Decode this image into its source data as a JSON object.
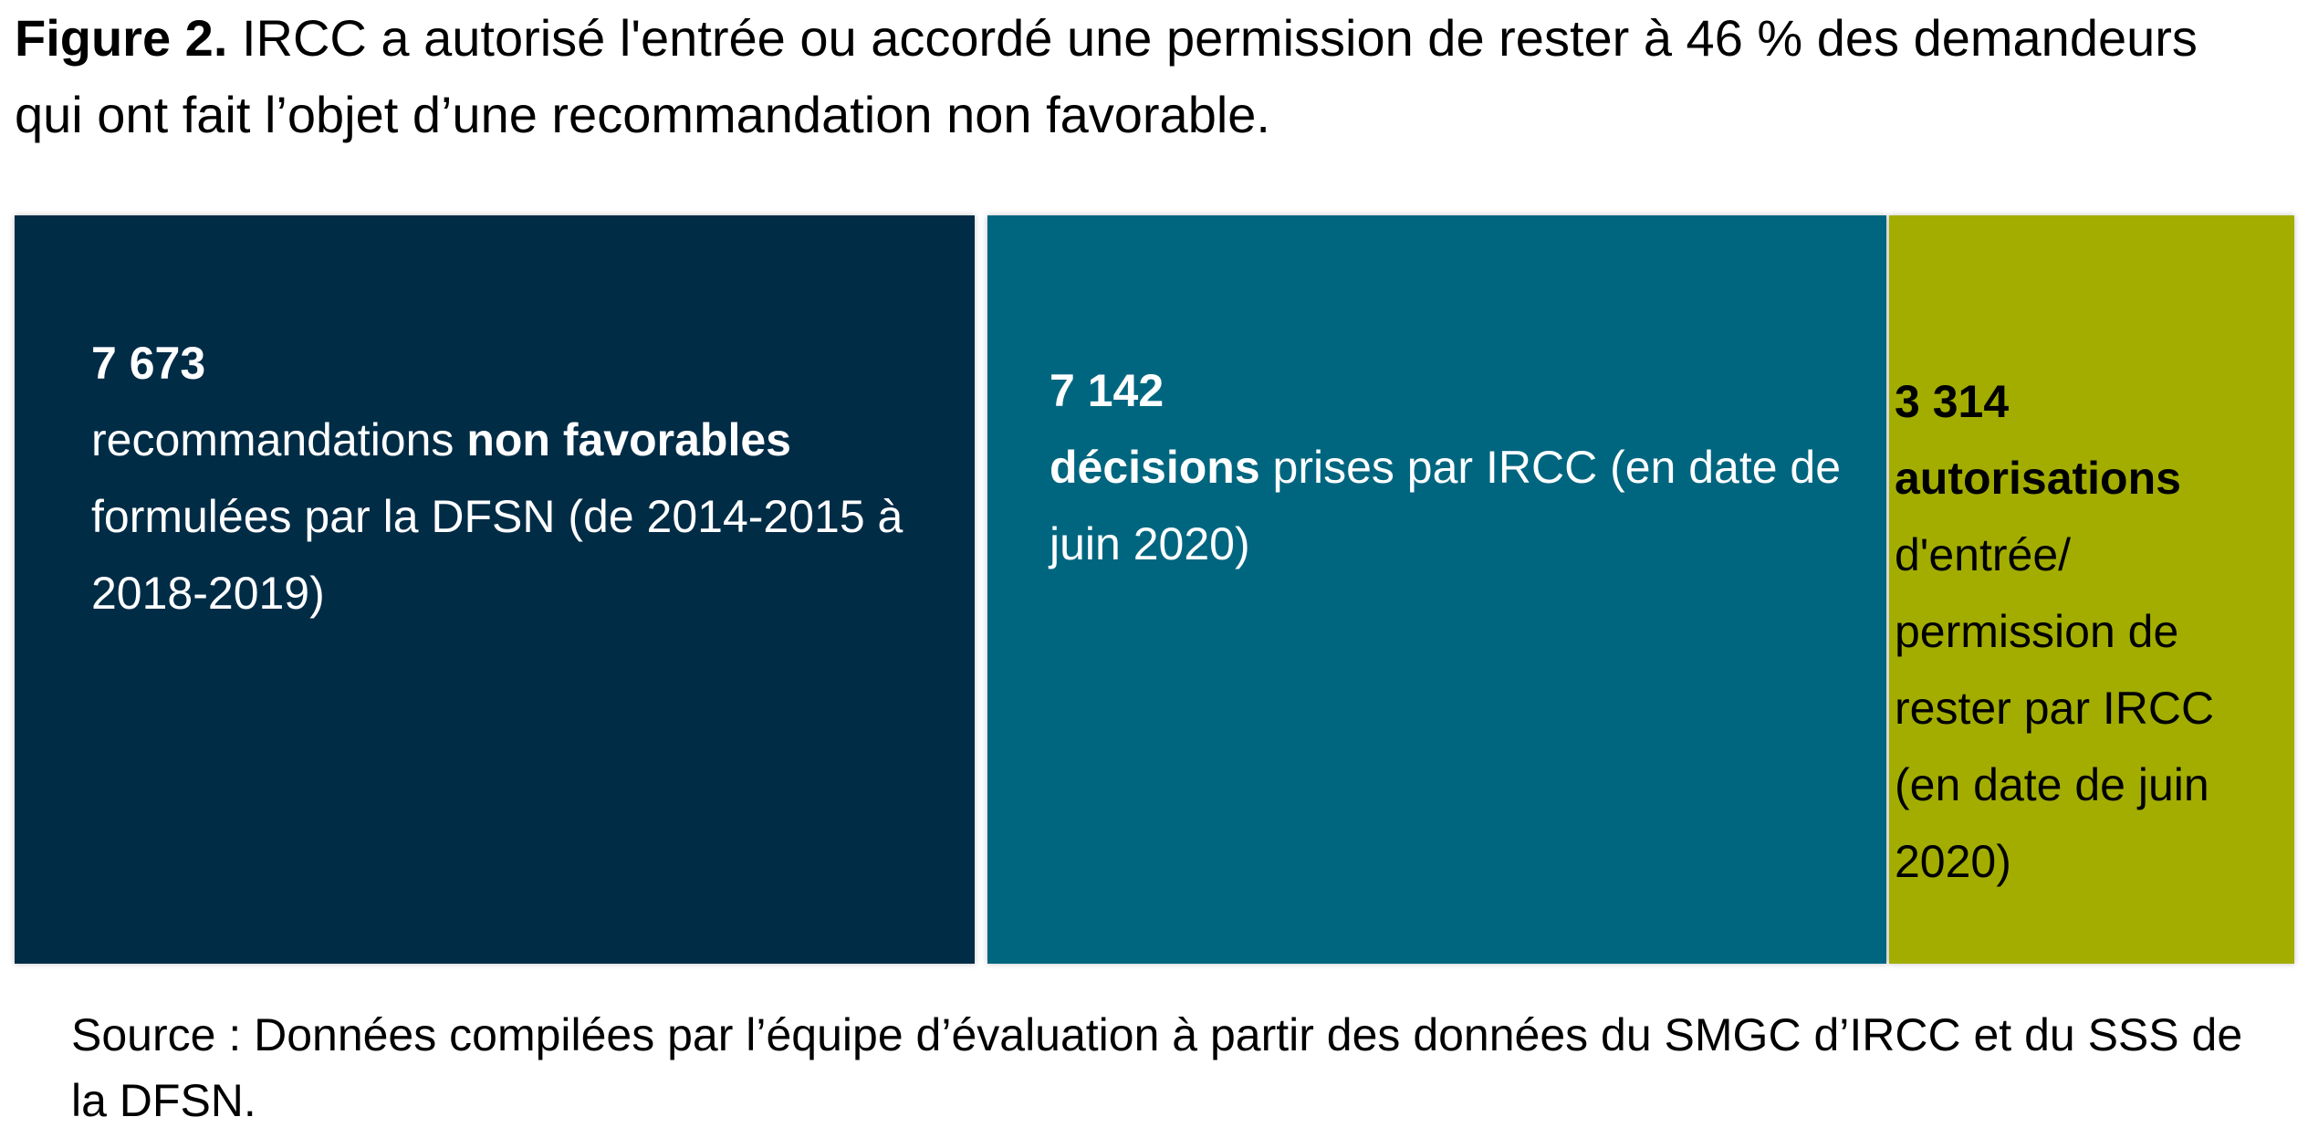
{
  "figure": {
    "label": "Figure 2.",
    "title": "IRCC a autorisé l'entrée ou accordé une permission de rester à 46 % des demandeurs qui ont fait l’objet d’une recommandation non favorable."
  },
  "chart_data": {
    "type": "bar",
    "orientation": "horizontal-proportional",
    "title": "IRCC a autorisé l'entrée ou accordé une permission de rester à 46 % des demandeurs qui ont fait l’objet d’une recommandation non favorable.",
    "categories": [
      "recommandations non favorables formulées par la DFSN (de 2014-2015 à 2018-2019)",
      "décisions prises par IRCC (en date de juin 2020)",
      "autorisations d'entrée/ permission de rester par IRCC (en date de juin 2020)"
    ],
    "values": [
      7673,
      7142,
      3314
    ],
    "value_labels": [
      "7 673",
      "7 142",
      "3 314"
    ],
    "colors": [
      "#002c46",
      "#006680",
      "#a2ad00"
    ],
    "grid": false,
    "legend": "none"
  },
  "blocks": [
    {
      "value_label": "7 673",
      "pre": "recommandations ",
      "bold": "non favorables",
      "post": " formulées par la DFSN (de 2014-2015 à 2018-2019)",
      "color": "#002c46"
    },
    {
      "value_label": "7 142",
      "pre": "",
      "bold": "décisions",
      "post": " prises par IRCC (en date de juin 2020)",
      "color": "#006680"
    },
    {
      "value_label": "3 314",
      "pre": "",
      "bold": "autorisations",
      "post": " d'entrée/ permission de rester par IRCC (en date de juin 2020)",
      "color": "#a2ad00"
    }
  ],
  "source": "Source : Données compilées par l’équipe d’évaluation à partir des données du SMGC d’IRCC et du SSS de la DFSN."
}
